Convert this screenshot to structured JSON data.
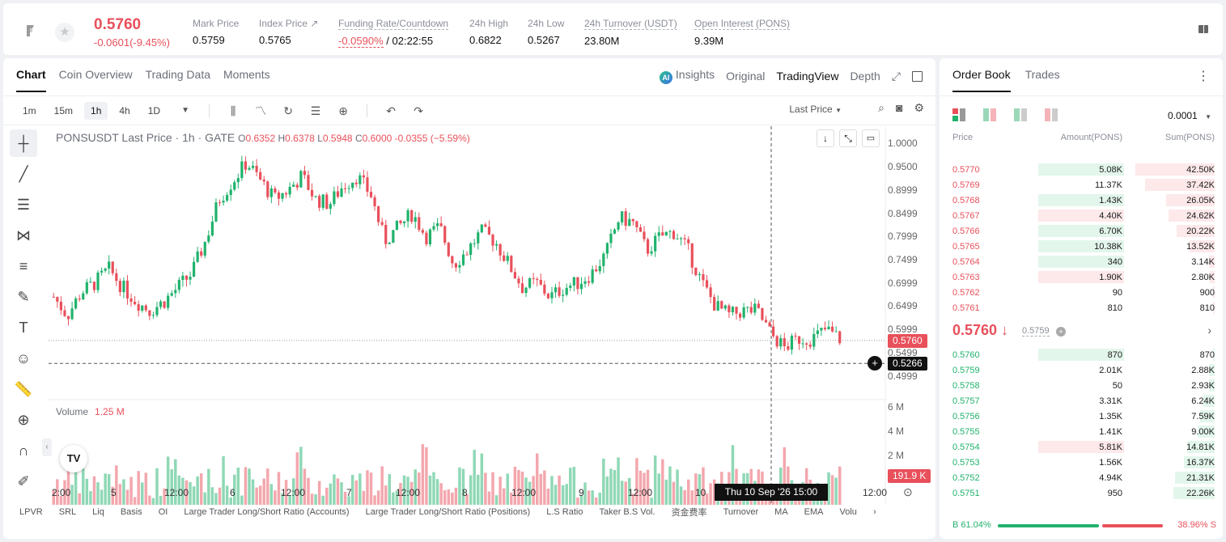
{
  "ticker": {
    "price": "0.5760",
    "change": "-0.0601(-9.45%)",
    "stats": [
      {
        "label": "Mark Price",
        "value": "0.5759"
      },
      {
        "label": "Index Price ↗",
        "value": "0.5765"
      },
      {
        "label": "Funding Rate/Countdown",
        "value_red": "-0.0590%",
        "value": " / 02:22:55"
      },
      {
        "label": "24h High",
        "value": "0.6822"
      },
      {
        "label": "24h Low",
        "value": "0.5267"
      },
      {
        "label": "24h Turnover (USDT)",
        "value": "23.80M"
      },
      {
        "label": "Open Interest (PONS)",
        "value": "9.39M"
      }
    ]
  },
  "chart_tabs": [
    "Chart",
    "Coin Overview",
    "Trading Data",
    "Moments"
  ],
  "view_tabs": {
    "ai_badge": "AI",
    "insights": "Insights",
    "original": "Original",
    "tradingview": "TradingView",
    "depth": "Depth"
  },
  "timeframes": [
    "1m",
    "15m",
    "1h",
    "4h",
    "1D"
  ],
  "last_price_select": "Last Price",
  "legend": {
    "symbol": "PONSUSDT Last Price · 1h · GATE",
    "o": "0.6352",
    "h": "0.6378",
    "l": "0.5948",
    "c": "0.6000",
    "chg": "-0.0355 (−5.59%)"
  },
  "volume_legend": {
    "label": "Volume",
    "value": "1.25 M"
  },
  "y_axis": [
    "1.0000",
    "0.9500",
    "0.8999",
    "0.8499",
    "0.7999",
    "0.7499",
    "0.6999",
    "0.6499",
    "0.5999",
    "0.5499",
    "0.4999"
  ],
  "vol_axis": [
    "6 M",
    "4 M",
    "2 M"
  ],
  "price_tag": "0.5760",
  "cursor_tag": "0.5266",
  "vol_tag": "191.9 K",
  "x_axis": [
    "2:00",
    "5",
    "12:00",
    "6",
    "12:00",
    "7",
    "12:00",
    "8",
    "12:00",
    "9",
    "12:00",
    "10",
    "12:00"
  ],
  "cursor_date": "Thu 10 Sep '26   15:00",
  "tv_logo": "TV",
  "indicators": [
    "LPVR",
    "SRL",
    "Liq",
    "Basis",
    "OI",
    "Large Trader Long/Short Ratio (Accounts)",
    "Large Trader Long/Short Ratio (Positions)",
    "L.S Ratio",
    "Taker B.S Vol.",
    "资金费率",
    "Turnover",
    "MA",
    "EMA",
    "Volu"
  ],
  "orderbook": {
    "tabs": [
      "Order Book",
      "Trades"
    ],
    "precision": "0.0001",
    "headers": {
      "price": "Price",
      "amount": "Amount(PONS)",
      "sum": "Sum(PONS)"
    },
    "asks": [
      {
        "price": "0.5770",
        "amount": "5.08K",
        "sum": "42.50K",
        "aside": "bid"
      },
      {
        "price": "0.5769",
        "amount": "11.37K",
        "sum": "37.42K",
        "aside": "none"
      },
      {
        "price": "0.5768",
        "amount": "1.43K",
        "sum": "26.05K",
        "aside": "bid"
      },
      {
        "price": "0.5767",
        "amount": "4.40K",
        "sum": "24.62K",
        "aside": "ask"
      },
      {
        "price": "0.5766",
        "amount": "6.70K",
        "sum": "20.22K",
        "aside": "bid"
      },
      {
        "price": "0.5765",
        "amount": "10.38K",
        "sum": "13.52K",
        "aside": "bid"
      },
      {
        "price": "0.5764",
        "amount": "340",
        "sum": "3.14K",
        "aside": "bid"
      },
      {
        "price": "0.5763",
        "amount": "1.90K",
        "sum": "2.80K",
        "aside": "ask"
      },
      {
        "price": "0.5762",
        "amount": "90",
        "sum": "900",
        "aside": "none"
      },
      {
        "price": "0.5761",
        "amount": "810",
        "sum": "810",
        "aside": "none"
      }
    ],
    "mid_price": "0.5760 ↓",
    "mark_price": "0.5759",
    "bids": [
      {
        "price": "0.5760",
        "amount": "870",
        "sum": "870",
        "aside": "bid"
      },
      {
        "price": "0.5759",
        "amount": "2.01K",
        "sum": "2.88K",
        "aside": "none"
      },
      {
        "price": "0.5758",
        "amount": "50",
        "sum": "2.93K",
        "aside": "none"
      },
      {
        "price": "0.5757",
        "amount": "3.31K",
        "sum": "6.24K",
        "aside": "none"
      },
      {
        "price": "0.5756",
        "amount": "1.35K",
        "sum": "7.59K",
        "aside": "none"
      },
      {
        "price": "0.5755",
        "amount": "1.41K",
        "sum": "9.00K",
        "aside": "none"
      },
      {
        "price": "0.5754",
        "amount": "5.81K",
        "sum": "14.81K",
        "aside": "ask"
      },
      {
        "price": "0.5753",
        "amount": "1.56K",
        "sum": "16.37K",
        "aside": "none"
      },
      {
        "price": "0.5752",
        "amount": "4.94K",
        "sum": "21.31K",
        "aside": "none"
      },
      {
        "price": "0.5751",
        "amount": "950",
        "sum": "22.26K",
        "aside": "none"
      }
    ],
    "buy_ratio": "B 61.04%",
    "sell_ratio": "38.96% S",
    "buy_fraction": 0.6104
  },
  "colors": {
    "up": "#20b26c",
    "down": "#e8505b"
  },
  "chart_data": {
    "type": "candlestick",
    "title": "PONSUSDT Last Price · 1h · GATE",
    "ylim": [
      0.48,
      1.02
    ],
    "last_price": 0.576,
    "cursor_price": 0.5266,
    "anchors": [
      0.67,
      0.63,
      0.68,
      0.7,
      0.73,
      0.69,
      0.66,
      0.64,
      0.66,
      0.69,
      0.72,
      0.79,
      0.88,
      0.92,
      0.96,
      0.92,
      0.88,
      0.9,
      0.93,
      0.88,
      0.87,
      0.91,
      0.93,
      0.89,
      0.79,
      0.82,
      0.85,
      0.8,
      0.82,
      0.74,
      0.77,
      0.81,
      0.79,
      0.74,
      0.69,
      0.7,
      0.67,
      0.69,
      0.7,
      0.72,
      0.76,
      0.84,
      0.83,
      0.77,
      0.8,
      0.81,
      0.77,
      0.7,
      0.65,
      0.63,
      0.64,
      0.64,
      0.59,
      0.56,
      0.58,
      0.58,
      0.6,
      0.58
    ]
  }
}
